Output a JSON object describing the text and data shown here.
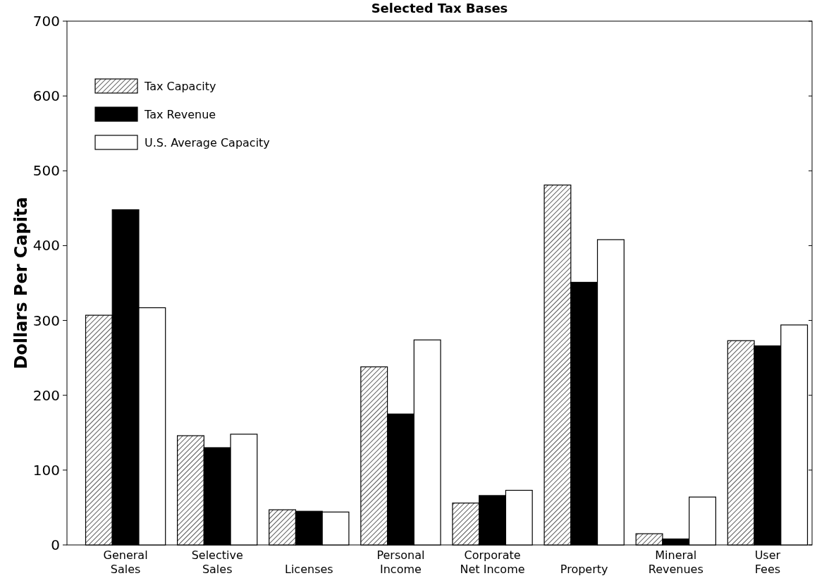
{
  "chart_data": {
    "type": "bar",
    "title": "Selected Tax Bases",
    "ylabel": "Dollars Per Capita",
    "categories": [
      "General\nSales",
      "Selective\nSales",
      "Licenses",
      "Personal\nIncome",
      "Corporate\nNet Income",
      "Property",
      "Mineral\nRevenues",
      "User\nFees"
    ],
    "series": [
      {
        "name": "Tax Capacity",
        "color": "#000000",
        "values": [
          307,
          146,
          47,
          238,
          56,
          481,
          15,
          273
        ]
      },
      {
        "name": "Tax Revenue",
        "color": "#000000",
        "values": [
          448,
          130,
          45,
          175,
          66,
          351,
          8,
          266
        ]
      },
      {
        "name": "U.S. Average Capacity",
        "color": "#ffffff",
        "values": [
          317,
          148,
          44,
          274,
          73,
          408,
          64,
          294
        ]
      }
    ],
    "ylim": [
      0,
      700
    ],
    "yticks": [
      0,
      100,
      200,
      300,
      400,
      500,
      600,
      700
    ],
    "legend": "top left",
    "grid": false
  }
}
